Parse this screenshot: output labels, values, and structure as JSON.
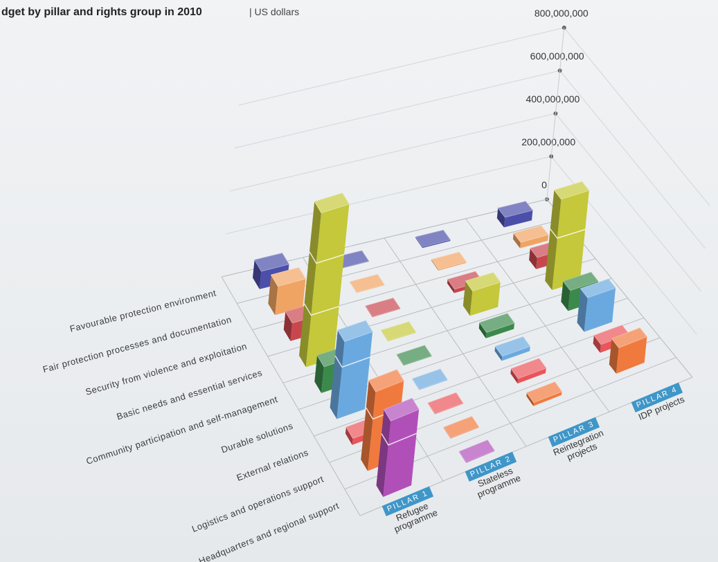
{
  "chart_data": {
    "type": "bar3d",
    "title": "dget by pillar and rights group in 2010",
    "subtitle": "| US dollars",
    "categories": [
      "Favourable protection environment",
      "Fair protection processes and documentation",
      "Security from violence and exploitation",
      "Basic needs and essential services",
      "Community participation and self-management",
      "Durable solutions",
      "External relations",
      "Logistics and operations support",
      "Headquarters and regional support"
    ],
    "colors": [
      "#4b4fa9",
      "#f0a463",
      "#c8474f",
      "#c4c83a",
      "#3b8a4c",
      "#6aa9e0",
      "#e9555a",
      "#f07a3e",
      "#b14fb9"
    ],
    "series": [
      {
        "pillar": "PILLAR 1",
        "name": "Refugee programme",
        "values": [
          80000000,
          120000000,
          70000000,
          560000000,
          90000000,
          250000000,
          20000000,
          230000000,
          210000000
        ]
      },
      {
        "pillar": "PILLAR 2",
        "name": "Stateless programme",
        "values": [
          2000000,
          2000000,
          2000000,
          2000000,
          2000000,
          2000000,
          2000000,
          2000000,
          2000000
        ]
      },
      {
        "pillar": "PILLAR 3",
        "name": "Reintegration projects",
        "values": [
          5000000,
          5000000,
          15000000,
          90000000,
          20000000,
          15000000,
          15000000,
          10000000,
          null
        ]
      },
      {
        "pillar": "PILLAR 4",
        "name": "IDP projects",
        "values": [
          45000000,
          25000000,
          45000000,
          330000000,
          70000000,
          110000000,
          25000000,
          75000000,
          null
        ]
      }
    ],
    "ylim": [
      0,
      800000000
    ],
    "yticks": [
      0,
      {
        "value": 200000000,
        "label": "200,000,000"
      },
      {
        "value": 400000000,
        "label": "400,000,000"
      },
      {
        "value": 600000000,
        "label": "600,000,000"
      },
      {
        "value": 800000000,
        "label": "800,000,000"
      }
    ],
    "grid": true
  }
}
